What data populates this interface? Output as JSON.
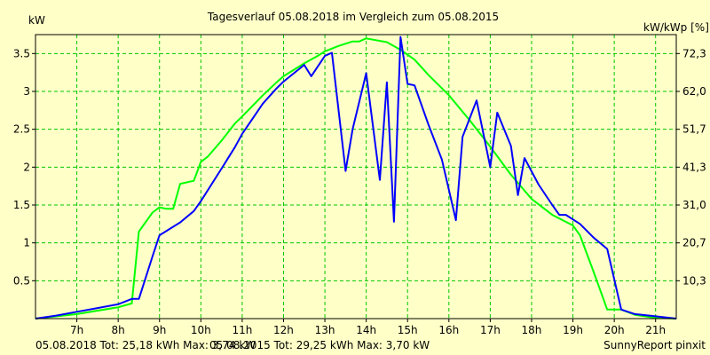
{
  "chart_data": {
    "type": "line",
    "title": "Tagesverlauf 05.08.2018 im Vergleich zum 05.08.2015",
    "ylabel_left": "kW",
    "ylabel_right": "kW/kWp [%]",
    "xlim": [
      6.0,
      21.5
    ],
    "ylim": [
      0,
      3.75
    ],
    "x_ticks": [
      7,
      8,
      9,
      10,
      11,
      12,
      13,
      14,
      15,
      16,
      17,
      18,
      19,
      20,
      21
    ],
    "x_tick_labels": [
      "7h",
      "8h",
      "9h",
      "10h",
      "11h",
      "12h",
      "13h",
      "14h",
      "15h",
      "16h",
      "17h",
      "18h",
      "19h",
      "20h",
      "21h"
    ],
    "y_ticks": [
      0.5,
      1,
      1.5,
      2,
      2.5,
      3,
      3.5
    ],
    "y_tick_labels": [
      "0.5",
      "1",
      "1.5",
      "2",
      "2.5",
      "3",
      "3.5"
    ],
    "y2_ticks": [
      0.5,
      1.0,
      1.5,
      2.0,
      2.5,
      3.0,
      3.5
    ],
    "y2_tick_labels": [
      "10,3",
      "20,7",
      "31,0",
      "41,3",
      "51,7",
      "62,0",
      "72,3"
    ],
    "grid": true,
    "series": [
      {
        "name": "05.08.2018",
        "color": "#0000ff",
        "points": [
          [
            6.0,
            0.0
          ],
          [
            6.5,
            0.04
          ],
          [
            7.0,
            0.09
          ],
          [
            7.5,
            0.14
          ],
          [
            8.0,
            0.19
          ],
          [
            8.33,
            0.26
          ],
          [
            8.5,
            0.26
          ],
          [
            8.83,
            0.82
          ],
          [
            9.0,
            1.1
          ],
          [
            9.5,
            1.27
          ],
          [
            9.83,
            1.42
          ],
          [
            10.0,
            1.55
          ],
          [
            10.5,
            1.98
          ],
          [
            10.83,
            2.27
          ],
          [
            11.0,
            2.44
          ],
          [
            11.5,
            2.84
          ],
          [
            11.83,
            3.04
          ],
          [
            12.0,
            3.13
          ],
          [
            12.5,
            3.35
          ],
          [
            12.67,
            3.2
          ],
          [
            13.0,
            3.47
          ],
          [
            13.17,
            3.51
          ],
          [
            13.5,
            1.95
          ],
          [
            13.67,
            2.5
          ],
          [
            14.0,
            3.24
          ],
          [
            14.33,
            1.83
          ],
          [
            14.5,
            3.12
          ],
          [
            14.67,
            1.28
          ],
          [
            14.83,
            3.72
          ],
          [
            15.0,
            3.1
          ],
          [
            15.17,
            3.08
          ],
          [
            15.5,
            2.57
          ],
          [
            15.83,
            2.1
          ],
          [
            16.17,
            1.3
          ],
          [
            16.33,
            2.4
          ],
          [
            16.67,
            2.88
          ],
          [
            17.0,
            2.0
          ],
          [
            17.17,
            2.72
          ],
          [
            17.5,
            2.28
          ],
          [
            17.67,
            1.63
          ],
          [
            17.83,
            2.12
          ],
          [
            18.17,
            1.77
          ],
          [
            18.5,
            1.5
          ],
          [
            18.67,
            1.37
          ],
          [
            18.83,
            1.37
          ],
          [
            19.17,
            1.25
          ],
          [
            19.5,
            1.07
          ],
          [
            19.83,
            0.92
          ],
          [
            20.17,
            0.12
          ],
          [
            20.5,
            0.06
          ],
          [
            21.0,
            0.03
          ],
          [
            21.5,
            0.0
          ]
        ]
      },
      {
        "name": "05.08.2015",
        "color": "#00ff00",
        "points": [
          [
            6.0,
            0.0
          ],
          [
            7.0,
            0.06
          ],
          [
            8.0,
            0.15
          ],
          [
            8.33,
            0.2
          ],
          [
            8.5,
            1.15
          ],
          [
            8.83,
            1.4
          ],
          [
            9.0,
            1.47
          ],
          [
            9.17,
            1.45
          ],
          [
            9.33,
            1.45
          ],
          [
            9.5,
            1.78
          ],
          [
            9.83,
            1.82
          ],
          [
            10.0,
            2.07
          ],
          [
            10.17,
            2.14
          ],
          [
            10.5,
            2.35
          ],
          [
            10.83,
            2.58
          ],
          [
            11.0,
            2.67
          ],
          [
            11.5,
            2.95
          ],
          [
            11.83,
            3.12
          ],
          [
            12.0,
            3.2
          ],
          [
            12.5,
            3.37
          ],
          [
            12.83,
            3.47
          ],
          [
            13.0,
            3.53
          ],
          [
            13.33,
            3.6
          ],
          [
            13.67,
            3.66
          ],
          [
            13.83,
            3.66
          ],
          [
            14.0,
            3.7
          ],
          [
            14.5,
            3.65
          ],
          [
            14.83,
            3.55
          ],
          [
            15.17,
            3.42
          ],
          [
            15.5,
            3.22
          ],
          [
            16.0,
            2.95
          ],
          [
            16.5,
            2.62
          ],
          [
            17.0,
            2.27
          ],
          [
            17.5,
            1.9
          ],
          [
            18.0,
            1.58
          ],
          [
            18.5,
            1.37
          ],
          [
            19.0,
            1.23
          ],
          [
            19.17,
            1.1
          ],
          [
            19.5,
            0.62
          ],
          [
            19.83,
            0.12
          ],
          [
            20.17,
            0.12
          ],
          [
            20.5,
            0.05
          ],
          [
            21.0,
            0.01
          ],
          [
            21.5,
            0.0
          ]
        ]
      }
    ],
    "footer_left_1": "05.08.2018 Tot: 25,18 kWh Max: 3,74 kW",
    "footer_left_2": "05.08.2015 Tot: 29,25 kWh Max: 3,70 kW",
    "footer_right": "SunnyReport pinxit",
    "footer_color_1": "#0000c8",
    "footer_color_2": "#00a000"
  }
}
